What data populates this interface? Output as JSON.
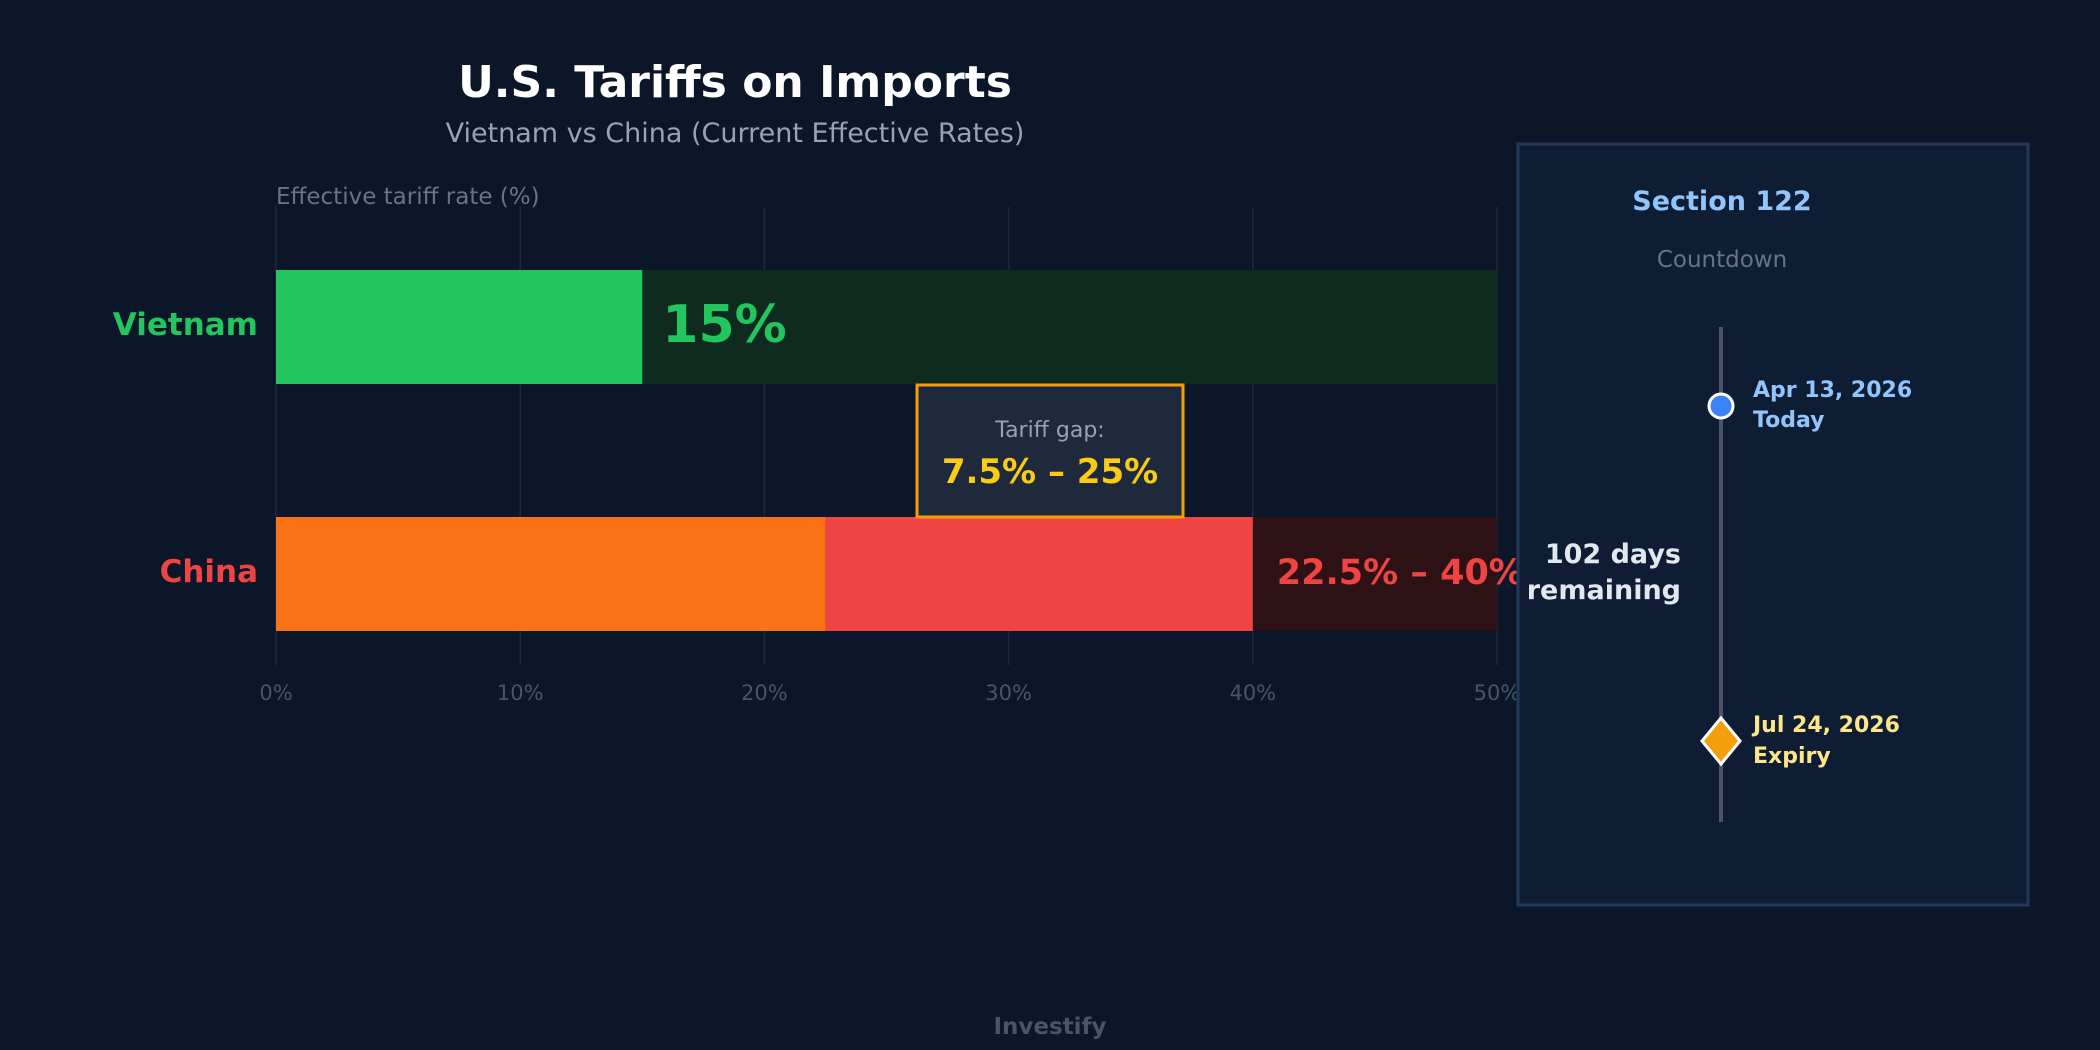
{
  "chart_data": {
    "type": "bar",
    "orientation": "horizontal",
    "title": "U.S. Tariffs on Imports",
    "subtitle": "Vietnam vs China (Current Effective Rates)",
    "xlabel": "Effective tariff rate (%)",
    "xlim": [
      0,
      50
    ],
    "xticks": [
      "0%",
      "10%",
      "20%",
      "30%",
      "40%",
      "50%"
    ],
    "xtick_values": [
      0,
      10,
      20,
      30,
      40,
      50
    ],
    "grid": true,
    "categories": [
      "Vietnam",
      "China"
    ],
    "bars": [
      {
        "category": "Vietnam",
        "low": 15,
        "high": 15,
        "label": "15%",
        "color": "#22c55e",
        "range_color": "#22c55e",
        "track_color": "#0f2a1e"
      },
      {
        "category": "China",
        "low": 22.5,
        "high": 40,
        "label": "22.5% – 40%",
        "color": "#f97316",
        "range_color": "#ef4444",
        "track_color": "#2d1114"
      }
    ],
    "annotation": {
      "label": "Tariff gap:",
      "value": "7.5% – 25%",
      "color": "#facc15",
      "border_color": "#f59e0b"
    }
  },
  "countdown": {
    "title": "Section 122",
    "subtitle": "Countdown",
    "today_date": "Apr 13, 2026",
    "today_label": "Today",
    "expiry_date": "Jul 24, 2026",
    "expiry_label": "Expiry",
    "remaining_line1": "102 days",
    "remaining_line2": "remaining",
    "today_color": "#3b82f6",
    "expiry_color": "#f59e0b"
  },
  "footer": {
    "brand": "Investify"
  }
}
